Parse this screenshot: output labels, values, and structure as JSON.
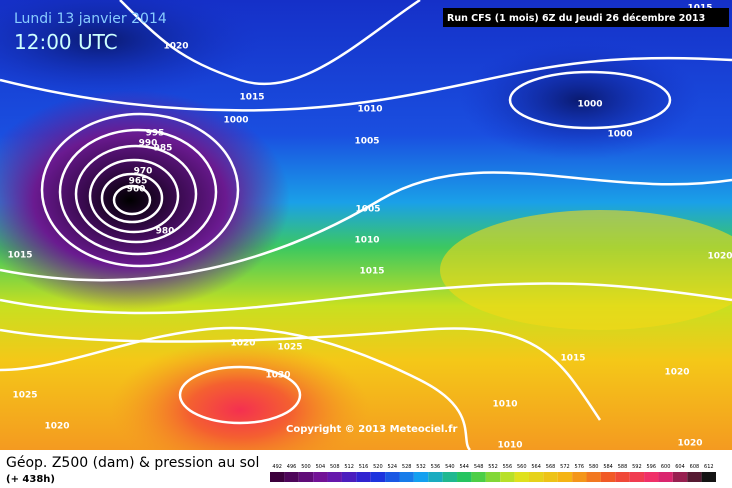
{
  "header": {
    "date": "Lundi 13 janvier 2014",
    "time": "12:00 UTC",
    "run": "Run CFS (1 mois) 6Z du Jeudi 26 décembre 2013"
  },
  "copyright": "Copyright © 2013 Meteociel.fr",
  "footer": {
    "title": "Géop. Z500 (dam) & pression au sol",
    "lead": "(+ 438h)"
  },
  "scale": {
    "labels": [
      "492",
      "496",
      "500",
      "504",
      "508",
      "512",
      "516",
      "520",
      "524",
      "528",
      "532",
      "536",
      "540",
      "544",
      "548",
      "552",
      "556",
      "560",
      "564",
      "568",
      "572",
      "576",
      "580",
      "584",
      "588",
      "592",
      "596",
      "600",
      "604",
      "608",
      "612"
    ]
  },
  "isobar_labels": [
    "1020",
    "1015",
    "1010",
    "1000",
    "1005",
    "995",
    "990",
    "985",
    "970",
    "965",
    "960",
    "980",
    "1015",
    "1005",
    "1010",
    "1015",
    "1020",
    "1025",
    "1030",
    "1025",
    "1020",
    "1000",
    "1000",
    "1015",
    "1020",
    "1010",
    "1010",
    "1020",
    "1020",
    "1015"
  ]
}
